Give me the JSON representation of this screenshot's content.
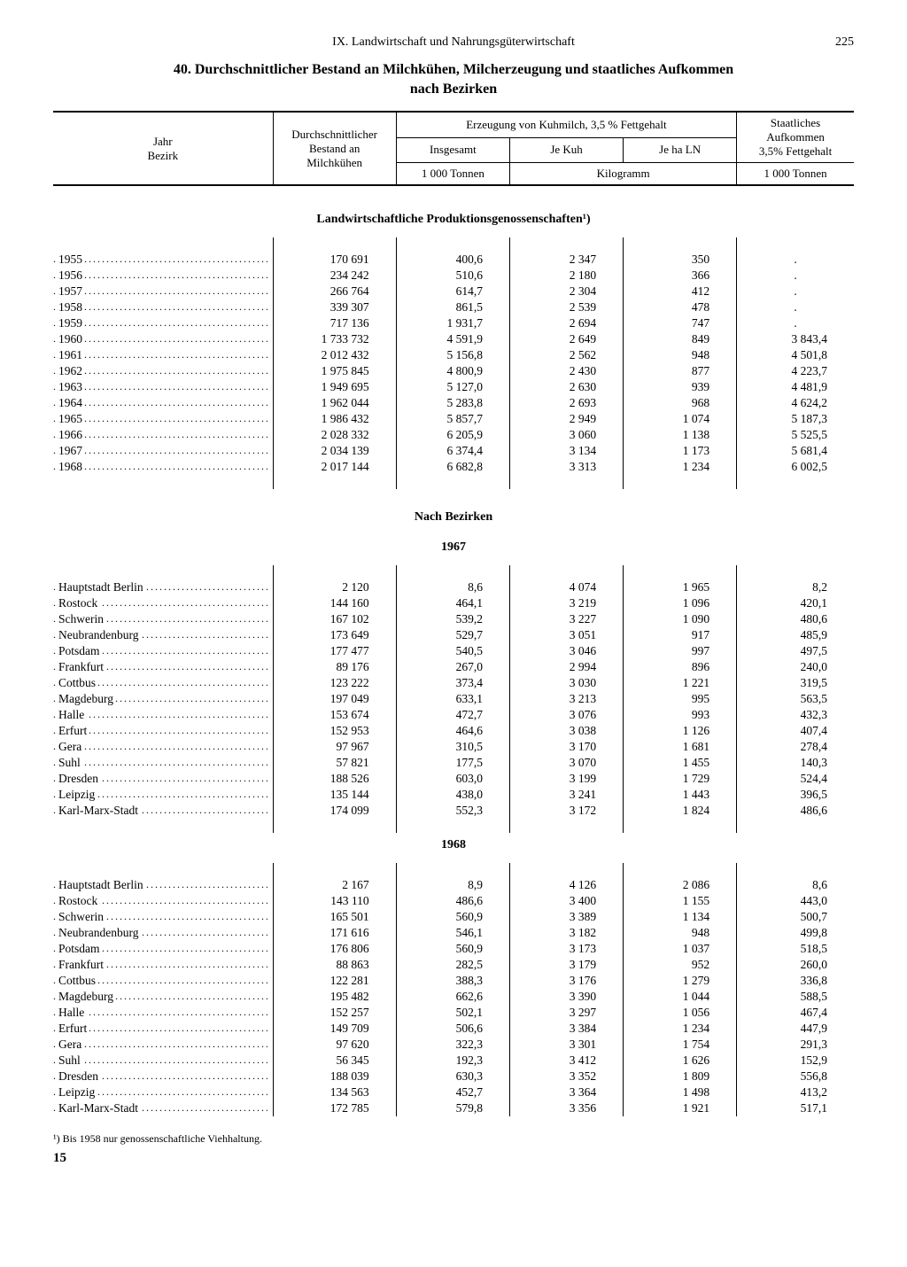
{
  "header": {
    "section": "IX. Landwirtschaft und Nahrungsgüterwirtschaft",
    "page_number": "225"
  },
  "title_line1": "40. Durchschnittlicher Bestand an Milchkühen, Milcherzeugung und staatliches Aufkommen",
  "title_line2": "nach Bezirken",
  "columns": {
    "col_a_line1": "Jahr",
    "col_a_line2": "Bezirk",
    "col_b_line1": "Durchschnittlicher",
    "col_b_line2": "Bestand an",
    "col_b_line3": "Milchkühen",
    "group_c_title": "Erzeugung von Kuhmilch, 3,5 % Fettgehalt",
    "c1": "Insgesamt",
    "c2": "Je Kuh",
    "c3": "Je ha LN",
    "unit_c1": "1 000 Tonnen",
    "unit_c23": "Kilogramm",
    "col_d_line1": "Staatliches",
    "col_d_line2": "Aufkommen",
    "col_d_line3": "3,5% Fettgehalt",
    "unit_d": "1 000 Tonnen"
  },
  "section1_title": "Landwirtschaftliche Produktionsgenossenschaften¹)",
  "years": [
    {
      "label": "1955",
      "b": "170 691",
      "c1": "400,6",
      "c2": "2 347",
      "c3": "350",
      "d": "."
    },
    {
      "label": "1956",
      "b": "234 242",
      "c1": "510,6",
      "c2": "2 180",
      "c3": "366",
      "d": "."
    },
    {
      "label": "1957",
      "b": "266 764",
      "c1": "614,7",
      "c2": "2 304",
      "c3": "412",
      "d": "."
    },
    {
      "label": "1958",
      "b": "339 307",
      "c1": "861,5",
      "c2": "2 539",
      "c3": "478",
      "d": "."
    },
    {
      "label": "1959",
      "b": "717 136",
      "c1": "1 931,7",
      "c2": "2 694",
      "c3": "747",
      "d": "."
    },
    {
      "label": "1960",
      "b": "1 733 732",
      "c1": "4 591,9",
      "c2": "2 649",
      "c3": "849",
      "d": "3 843,4"
    },
    {
      "label": "1961",
      "b": "2 012 432",
      "c1": "5 156,8",
      "c2": "2 562",
      "c3": "948",
      "d": "4 501,8"
    },
    {
      "label": "1962",
      "b": "1 975 845",
      "c1": "4 800,9",
      "c2": "2 430",
      "c3": "877",
      "d": "4 223,7"
    },
    {
      "label": "1963",
      "b": "1 949 695",
      "c1": "5 127,0",
      "c2": "2 630",
      "c3": "939",
      "d": "4 481,9"
    },
    {
      "label": "1964",
      "b": "1 962 044",
      "c1": "5 283,8",
      "c2": "2 693",
      "c3": "968",
      "d": "4 624,2"
    },
    {
      "label": "1965",
      "b": "1 986 432",
      "c1": "5 857,7",
      "c2": "2 949",
      "c3": "1 074",
      "d": "5 187,3"
    },
    {
      "label": "1966",
      "b": "2 028 332",
      "c1": "6 205,9",
      "c2": "3 060",
      "c3": "1 138",
      "d": "5 525,5"
    },
    {
      "label": "1967",
      "b": "2 034 139",
      "c1": "6 374,4",
      "c2": "3 134",
      "c3": "1 173",
      "d": "5 681,4"
    },
    {
      "label": "1968",
      "b": "2 017 144",
      "c1": "6 682,8",
      "c2": "3 313",
      "c3": "1 234",
      "d": "6 002,5"
    }
  ],
  "section2_title": "Nach Bezirken",
  "year_1967": "1967",
  "bezirke_1967": [
    {
      "label": "Hauptstadt Berlin",
      "b": "2 120",
      "c1": "8,6",
      "c2": "4 074",
      "c3": "1 965",
      "d": "8,2"
    },
    {
      "label": "Rostock",
      "b": "144 160",
      "c1": "464,1",
      "c2": "3 219",
      "c3": "1 096",
      "d": "420,1"
    },
    {
      "label": "Schwerin",
      "b": "167 102",
      "c1": "539,2",
      "c2": "3 227",
      "c3": "1 090",
      "d": "480,6"
    },
    {
      "label": "Neubrandenburg",
      "b": "173 649",
      "c1": "529,7",
      "c2": "3 051",
      "c3": "917",
      "d": "485,9"
    },
    {
      "label": "Potsdam",
      "b": "177 477",
      "c1": "540,5",
      "c2": "3 046",
      "c3": "997",
      "d": "497,5"
    },
    {
      "label": "Frankfurt",
      "b": "89 176",
      "c1": "267,0",
      "c2": "2 994",
      "c3": "896",
      "d": "240,0"
    },
    {
      "label": "Cottbus",
      "b": "123 222",
      "c1": "373,4",
      "c2": "3 030",
      "c3": "1 221",
      "d": "319,5"
    },
    {
      "label": "Magdeburg",
      "b": "197 049",
      "c1": "633,1",
      "c2": "3 213",
      "c3": "995",
      "d": "563,5"
    },
    {
      "label": "Halle",
      "b": "153 674",
      "c1": "472,7",
      "c2": "3 076",
      "c3": "993",
      "d": "432,3"
    },
    {
      "label": "Erfurt",
      "b": "152 953",
      "c1": "464,6",
      "c2": "3 038",
      "c3": "1 126",
      "d": "407,4"
    },
    {
      "label": "Gera",
      "b": "97 967",
      "c1": "310,5",
      "c2": "3 170",
      "c3": "1 681",
      "d": "278,4"
    },
    {
      "label": "Suhl",
      "b": "57 821",
      "c1": "177,5",
      "c2": "3 070",
      "c3": "1 455",
      "d": "140,3"
    },
    {
      "label": "Dresden",
      "b": "188 526",
      "c1": "603,0",
      "c2": "3 199",
      "c3": "1 729",
      "d": "524,4"
    },
    {
      "label": "Leipzig",
      "b": "135 144",
      "c1": "438,0",
      "c2": "3 241",
      "c3": "1 443",
      "d": "396,5"
    },
    {
      "label": "Karl-Marx-Stadt",
      "b": "174 099",
      "c1": "552,3",
      "c2": "3 172",
      "c3": "1 824",
      "d": "486,6"
    }
  ],
  "year_1968": "1968",
  "bezirke_1968": [
    {
      "label": "Hauptstadt Berlin",
      "b": "2 167",
      "c1": "8,9",
      "c2": "4 126",
      "c3": "2 086",
      "d": "8,6"
    },
    {
      "label": "Rostock",
      "b": "143 110",
      "c1": "486,6",
      "c2": "3 400",
      "c3": "1 155",
      "d": "443,0"
    },
    {
      "label": "Schwerin",
      "b": "165 501",
      "c1": "560,9",
      "c2": "3 389",
      "c3": "1 134",
      "d": "500,7"
    },
    {
      "label": "Neubrandenburg",
      "b": "171 616",
      "c1": "546,1",
      "c2": "3 182",
      "c3": "948",
      "d": "499,8"
    },
    {
      "label": "Potsdam",
      "b": "176 806",
      "c1": "560,9",
      "c2": "3 173",
      "c3": "1 037",
      "d": "518,5"
    },
    {
      "label": "Frankfurt",
      "b": "88 863",
      "c1": "282,5",
      "c2": "3 179",
      "c3": "952",
      "d": "260,0"
    },
    {
      "label": "Cottbus",
      "b": "122 281",
      "c1": "388,3",
      "c2": "3 176",
      "c3": "1 279",
      "d": "336,8"
    },
    {
      "label": "Magdeburg",
      "b": "195 482",
      "c1": "662,6",
      "c2": "3 390",
      "c3": "1 044",
      "d": "588,5"
    },
    {
      "label": "Halle",
      "b": "152 257",
      "c1": "502,1",
      "c2": "3 297",
      "c3": "1 056",
      "d": "467,4"
    },
    {
      "label": "Erfurt",
      "b": "149 709",
      "c1": "506,6",
      "c2": "3 384",
      "c3": "1 234",
      "d": "447,9"
    },
    {
      "label": "Gera",
      "b": "97 620",
      "c1": "322,3",
      "c2": "3 301",
      "c3": "1 754",
      "d": "291,3"
    },
    {
      "label": "Suhl",
      "b": "56 345",
      "c1": "192,3",
      "c2": "3 412",
      "c3": "1 626",
      "d": "152,9"
    },
    {
      "label": "Dresden",
      "b": "188 039",
      "c1": "630,3",
      "c2": "3 352",
      "c3": "1 809",
      "d": "556,8"
    },
    {
      "label": "Leipzig",
      "b": "134 563",
      "c1": "452,7",
      "c2": "3 364",
      "c3": "1 498",
      "d": "413,2"
    },
    {
      "label": "Karl-Marx-Stadt",
      "b": "172 785",
      "c1": "579,8",
      "c2": "3 356",
      "c3": "1 921",
      "d": "517,1"
    }
  ],
  "footnote": "¹) Bis 1958 nur genossenschaftliche Viehhaltung.",
  "bottom_page": "15"
}
